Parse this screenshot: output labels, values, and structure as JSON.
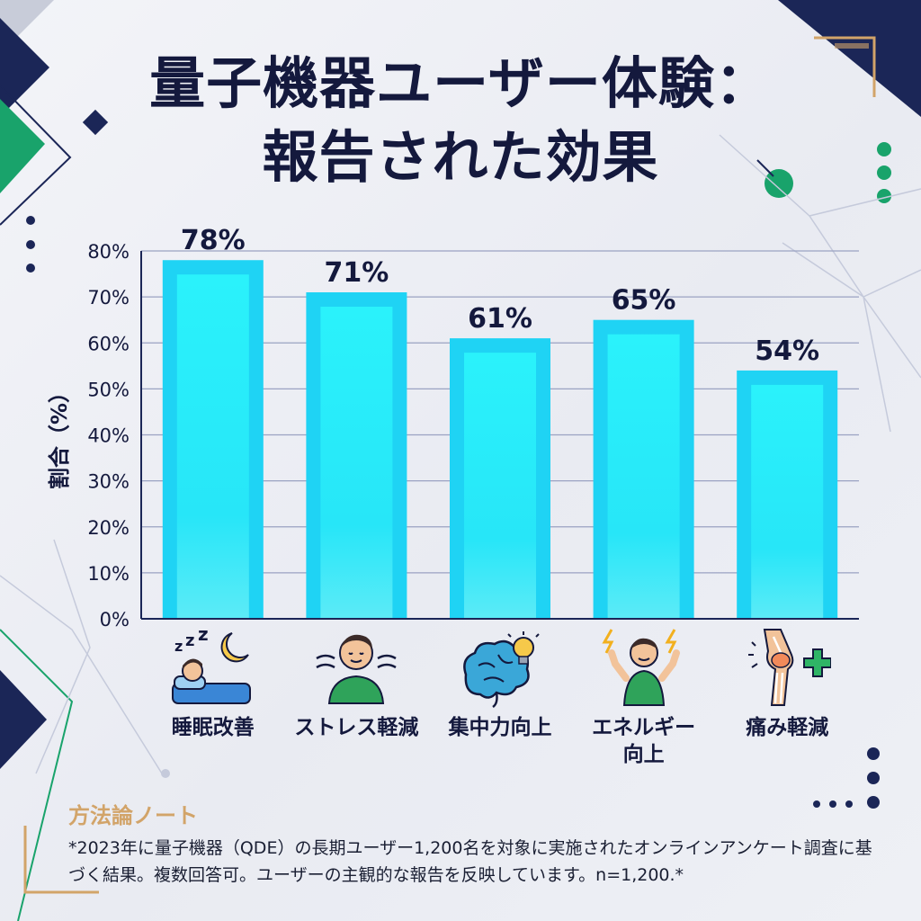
{
  "title": {
    "line1": "量子機器ユーザー体験：",
    "line2": "報告された効果"
  },
  "chart_data": {
    "type": "bar",
    "categories": [
      "睡眠改善",
      "ストレス軽減",
      "集中力向上",
      "エネルギー向上",
      "痛み軽減"
    ],
    "category_lines": [
      [
        "睡眠改善"
      ],
      [
        "ストレス軽減"
      ],
      [
        "集中力向上"
      ],
      [
        "エネルギー",
        "向上"
      ],
      [
        "痛み軽減"
      ]
    ],
    "values": [
      78,
      71,
      61,
      65,
      54
    ],
    "value_labels": [
      "78%",
      "71%",
      "61%",
      "65%",
      "54%"
    ],
    "ylabel": "割合（%）",
    "ylim": [
      0,
      80
    ],
    "yticks": [
      "0%",
      "10%",
      "20%",
      "30%",
      "40%",
      "50%",
      "60%",
      "70%",
      "80%"
    ],
    "grid": true,
    "bar_color": "#1fd3f4",
    "bar_inner_color": "#2af2fb"
  },
  "icons": [
    "sleeping-person-moon-icon",
    "relaxed-person-icon",
    "brain-lightbulb-icon",
    "energetic-person-icon",
    "knee-joint-plus-icon"
  ],
  "methodology": {
    "title": "方法論ノート",
    "body": "*2023年に量子機器（QDE）の長期ユーザー1,200名を対象に実施されたオンラインアンケート調査に基づく結果。複数回答可。ユーザーの主観的な報告を反映しています。n=1,200.*"
  },
  "colors": {
    "navy": "#1b2657",
    "green": "#19a36b",
    "gold": "#d2a469",
    "text": "#14193d"
  }
}
